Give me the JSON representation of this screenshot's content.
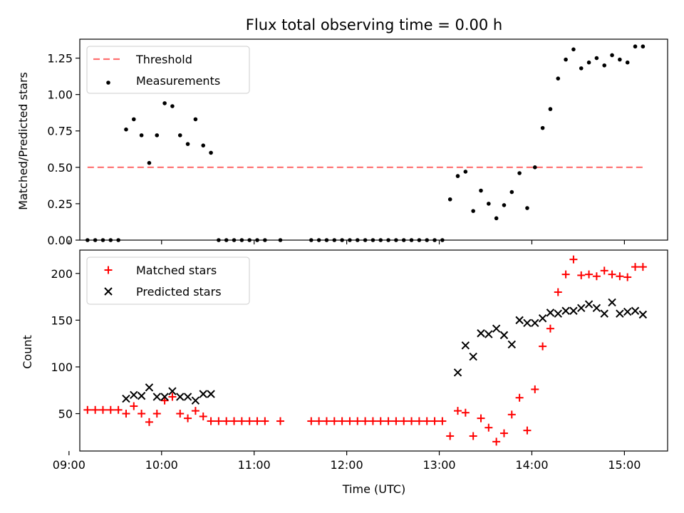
{
  "chart_data": [
    {
      "type": "scatter",
      "title": "Flux total observing time = 0.00 h",
      "ylabel": "Matched/Predicted stars",
      "xlabel": "",
      "xlim": [
        "09:07",
        "15:28"
      ],
      "ylim": [
        0,
        1.38
      ],
      "yticks": [
        "0.00",
        "0.25",
        "0.50",
        "0.75",
        "1.00",
        "1.25"
      ],
      "legend": "top-left",
      "series": [
        {
          "name": "Threshold",
          "kind": "dashed-line",
          "color": "#ff7070",
          "x": [
            "09:12",
            "15:12"
          ],
          "y": [
            0.5,
            0.5
          ]
        },
        {
          "name": "Measurements",
          "kind": "dot",
          "color": "#000000",
          "x": [
            "09:12",
            "09:17",
            "09:22",
            "09:27",
            "09:32",
            "09:37",
            "09:42",
            "09:47",
            "09:52",
            "09:57",
            "10:02",
            "10:07",
            "10:12",
            "10:17",
            "10:22",
            "10:27",
            "10:32",
            "10:37",
            "10:42",
            "10:47",
            "10:52",
            "10:57",
            "11:02",
            "11:07",
            "11:17",
            "11:37",
            "11:42",
            "11:47",
            "11:52",
            "11:57",
            "12:02",
            "12:07",
            "12:12",
            "12:17",
            "12:22",
            "12:27",
            "12:32",
            "12:37",
            "12:42",
            "12:47",
            "12:52",
            "12:57",
            "13:02",
            "13:07",
            "13:12",
            "13:17",
            "13:22",
            "13:27",
            "13:32",
            "13:37",
            "13:42",
            "13:47",
            "13:52",
            "13:57",
            "14:02",
            "14:07",
            "14:12",
            "14:17",
            "14:22",
            "14:27",
            "14:32",
            "14:37",
            "14:42",
            "14:47",
            "14:52",
            "14:57",
            "15:02",
            "15:07",
            "15:12"
          ],
          "y": [
            0,
            0,
            0,
            0,
            0,
            0.76,
            0.83,
            0.72,
            0.53,
            0.72,
            0.94,
            0.92,
            0.72,
            0.66,
            0.83,
            0.65,
            0.6,
            0,
            0,
            0,
            0,
            0,
            0,
            0,
            0,
            0,
            0,
            0,
            0,
            0,
            0,
            0,
            0,
            0,
            0,
            0,
            0,
            0,
            0,
            0,
            0,
            0,
            0,
            0.28,
            0.44,
            0.47,
            0.2,
            0.34,
            0.25,
            0.15,
            0.24,
            0.33,
            0.46,
            0.22,
            0.5,
            0.77,
            0.9,
            1.11,
            1.24,
            1.31,
            1.18,
            1.22,
            1.25,
            1.2,
            1.27,
            1.24,
            1.22,
            1.33,
            1.33
          ]
        }
      ]
    },
    {
      "type": "scatter",
      "title": "",
      "ylabel": "Count",
      "xlabel": "Time (UTC)",
      "xlim": [
        "09:07",
        "15:28"
      ],
      "ylim": [
        10,
        225
      ],
      "yticks": [
        "50",
        "100",
        "150",
        "200"
      ],
      "xticks": [
        "09:00",
        "10:00",
        "11:00",
        "12:00",
        "13:00",
        "14:00",
        "15:00"
      ],
      "legend": "top-left",
      "series": [
        {
          "name": "Matched stars",
          "kind": "plus",
          "color": "#ff0000",
          "x": [
            "09:12",
            "09:17",
            "09:22",
            "09:27",
            "09:32",
            "09:37",
            "09:42",
            "09:47",
            "09:52",
            "09:57",
            "10:02",
            "10:07",
            "10:12",
            "10:17",
            "10:22",
            "10:27",
            "10:32",
            "10:37",
            "10:42",
            "10:47",
            "10:52",
            "10:57",
            "11:02",
            "11:07",
            "11:17",
            "11:37",
            "11:42",
            "11:47",
            "11:52",
            "11:57",
            "12:02",
            "12:07",
            "12:12",
            "12:17",
            "12:22",
            "12:27",
            "12:32",
            "12:37",
            "12:42",
            "12:47",
            "12:52",
            "12:57",
            "13:02",
            "13:07",
            "13:12",
            "13:17",
            "13:22",
            "13:27",
            "13:32",
            "13:37",
            "13:42",
            "13:47",
            "13:52",
            "13:57",
            "14:02",
            "14:07",
            "14:12",
            "14:17",
            "14:22",
            "14:27",
            "14:32",
            "14:37",
            "14:42",
            "14:47",
            "14:52",
            "14:57",
            "15:02",
            "15:07",
            "15:12"
          ],
          "y": [
            54,
            54,
            54,
            54,
            54,
            50,
            58,
            50,
            41,
            50,
            64,
            68,
            50,
            45,
            53,
            47,
            42,
            42,
            42,
            42,
            42,
            42,
            42,
            42,
            42,
            42,
            42,
            42,
            42,
            42,
            42,
            42,
            42,
            42,
            42,
            42,
            42,
            42,
            42,
            42,
            42,
            42,
            42,
            26,
            53,
            51,
            26,
            45,
            35,
            20,
            29,
            49,
            67,
            32,
            76,
            122,
            141,
            180,
            199,
            215,
            198,
            199,
            197,
            203,
            199,
            197,
            196,
            207,
            207
          ]
        },
        {
          "name": "Predicted stars",
          "kind": "cross",
          "color": "#000000",
          "x": [
            "09:37",
            "09:42",
            "09:47",
            "09:52",
            "09:57",
            "10:02",
            "10:07",
            "10:12",
            "10:17",
            "10:22",
            "10:27",
            "10:32",
            "13:12",
            "13:17",
            "13:22",
            "13:27",
            "13:32",
            "13:37",
            "13:42",
            "13:47",
            "13:52",
            "13:57",
            "14:02",
            "14:07",
            "14:12",
            "14:17",
            "14:22",
            "14:27",
            "14:32",
            "14:37",
            "14:42",
            "14:47",
            "14:52",
            "14:57",
            "15:02",
            "15:07",
            "15:12"
          ],
          "y": [
            66,
            70,
            69,
            78,
            68,
            68,
            74,
            68,
            68,
            64,
            71,
            71,
            94,
            123,
            111,
            136,
            135,
            141,
            134,
            124,
            150,
            147,
            147,
            152,
            158,
            157,
            160,
            160,
            163,
            167,
            163,
            157,
            169,
            157,
            159,
            160,
            156
          ]
        }
      ]
    }
  ]
}
